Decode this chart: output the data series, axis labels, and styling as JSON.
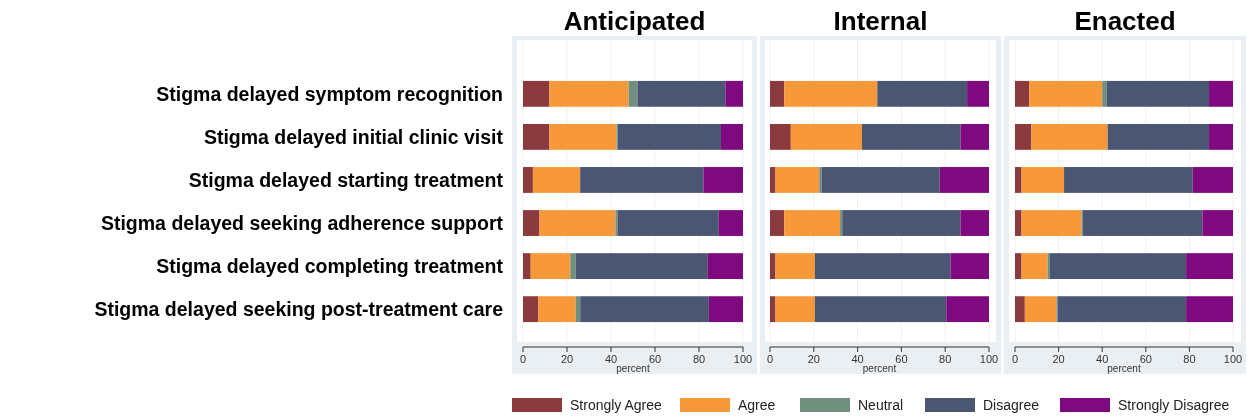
{
  "chart_data": [
    {
      "type": "bar",
      "orientation": "horizontal",
      "stacked": true,
      "title": "Anticipated",
      "xlabel": "percent",
      "categories": [
        "Stigma delayed symptom recognition",
        "Stigma delayed initial clinic visit",
        "Stigma delayed starting treatment",
        "Stigma delayed seeking adherence support",
        "Stigma delayed completing treatment",
        "Stigma delayed seeking post-treatment care"
      ],
      "xlim": [
        0,
        100
      ],
      "xticks": [
        0,
        20,
        40,
        60,
        80,
        100
      ],
      "grid": "x",
      "legend": "bottom",
      "series": [
        {
          "name": "Strongly Agree",
          "color": "#8b3a3e",
          "values": [
            12,
            12,
            4.5,
            7.5,
            3.5,
            7
          ]
        },
        {
          "name": "Agree",
          "color": "#f7993a",
          "values": [
            36,
            30.5,
            21.5,
            34.5,
            18,
            17
          ]
        },
        {
          "name": "Neutral",
          "color": "#6f8f7f",
          "values": [
            4,
            0.5,
            0,
            1,
            2.5,
            2
          ]
        },
        {
          "name": "Disagree",
          "color": "#4b5673",
          "values": [
            40,
            47,
            56,
            46,
            60,
            58.5
          ]
        },
        {
          "name": "Strongly Disagree",
          "color": "#7f0a7f",
          "values": [
            8,
            10,
            18,
            11,
            16,
            15.5
          ]
        }
      ]
    },
    {
      "type": "bar",
      "orientation": "horizontal",
      "stacked": true,
      "title": "Internal",
      "xlabel": "percent",
      "categories": [
        null,
        null,
        null,
        null,
        null,
        null
      ],
      "xlim": [
        0,
        100
      ],
      "xticks": [
        0,
        20,
        40,
        60,
        80,
        100
      ],
      "grid": "x",
      "tick_labels": "x",
      "series": [
        {
          "color": "#8b3a3e",
          "values": [
            6.5,
            9.5,
            2.5,
            6.5,
            2.5,
            2.5
          ]
        },
        {
          "color": "#f7993a",
          "values": [
            42.5,
            32.5,
            20,
            25.5,
            18,
            18
          ]
        },
        {
          "color": "#6f8f7f",
          "values": [
            0,
            0,
            1,
            1,
            0,
            0
          ]
        },
        {
          "color": "#4b5673",
          "values": [
            41,
            45,
            54,
            54,
            62,
            60
          ]
        },
        {
          "color": "#7f0a7f",
          "values": [
            10,
            13,
            22.5,
            13,
            17.5,
            19.5
          ]
        }
      ]
    },
    {
      "type": "bar",
      "orientation": "horizontal",
      "stacked": true,
      "title": "Enacted",
      "xlabel": "percent",
      "categories": [
        null,
        null,
        null,
        null,
        null,
        null
      ],
      "xlim": [
        0,
        100
      ],
      "xticks": [
        0,
        20,
        40,
        60,
        80,
        100
      ],
      "grid": "x",
      "tick_labels": "x",
      "series": [
        {
          "color": "#8b3a3e",
          "values": [
            6.5,
            7.5,
            3,
            3,
            3,
            4.5
          ]
        },
        {
          "color": "#f7993a",
          "values": [
            33.5,
            35,
            19.5,
            27.5,
            12,
            14.5
          ]
        },
        {
          "color": "#6f8f7f",
          "values": [
            2,
            0,
            0,
            0.5,
            1,
            0.5
          ]
        },
        {
          "color": "#4b5673",
          "values": [
            47,
            46.5,
            59,
            55,
            62.5,
            59
          ]
        },
        {
          "color": "#7f0a7f",
          "values": [
            11,
            11,
            18.5,
            14,
            21.5,
            21.5
          ]
        }
      ]
    }
  ]
}
